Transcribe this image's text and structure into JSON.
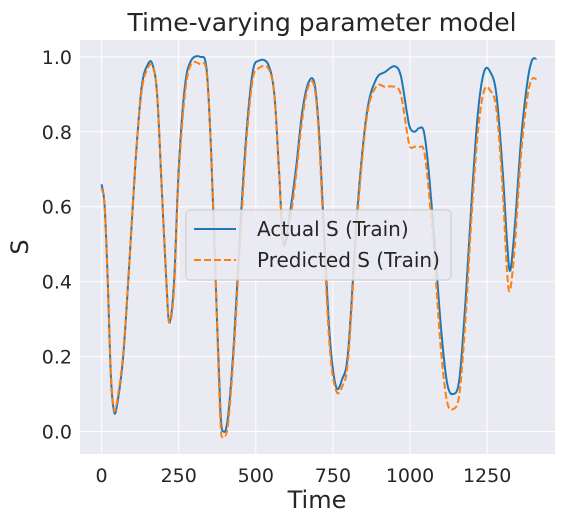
{
  "chart_data": {
    "type": "line",
    "title": "Time-varying parameter model",
    "xlabel": "Time",
    "ylabel": "S",
    "xlim": [
      -70,
      1470
    ],
    "ylim": [
      -0.06,
      1.045
    ],
    "xticks": [
      0,
      250,
      500,
      750,
      1000,
      1250
    ],
    "yticks": [
      0.0,
      0.2,
      0.4,
      0.6,
      0.8,
      1.0
    ],
    "ytick_labels": [
      "0.0",
      "0.2",
      "0.4",
      "0.6",
      "0.8",
      "1.0"
    ],
    "grid": true,
    "background": "#EAEAF2",
    "legend": {
      "placement": "center-right"
    },
    "series": [
      {
        "name": "Actual S (Train)",
        "color": "#1F77B4",
        "dash": "solid",
        "points": [
          [
            0,
            0.66
          ],
          [
            10,
            0.6
          ],
          [
            20,
            0.4
          ],
          [
            30,
            0.15
          ],
          [
            40,
            0.055
          ],
          [
            50,
            0.07
          ],
          [
            70,
            0.2
          ],
          [
            90,
            0.45
          ],
          [
            110,
            0.72
          ],
          [
            130,
            0.92
          ],
          [
            150,
            0.98
          ],
          [
            165,
            0.98
          ],
          [
            180,
            0.9
          ],
          [
            195,
            0.65
          ],
          [
            210,
            0.4
          ],
          [
            220,
            0.29
          ],
          [
            235,
            0.4
          ],
          [
            250,
            0.7
          ],
          [
            270,
            0.92
          ],
          [
            290,
            0.99
          ],
          [
            320,
            1.0
          ],
          [
            340,
            0.97
          ],
          [
            355,
            0.75
          ],
          [
            370,
            0.4
          ],
          [
            385,
            0.06
          ],
          [
            395,
            0.0
          ],
          [
            410,
            0.04
          ],
          [
            430,
            0.25
          ],
          [
            450,
            0.55
          ],
          [
            470,
            0.8
          ],
          [
            490,
            0.96
          ],
          [
            510,
            0.99
          ],
          [
            540,
            0.98
          ],
          [
            560,
            0.9
          ],
          [
            575,
            0.7
          ],
          [
            590,
            0.5
          ],
          [
            610,
            0.58
          ],
          [
            630,
            0.7
          ],
          [
            650,
            0.85
          ],
          [
            670,
            0.93
          ],
          [
            690,
            0.93
          ],
          [
            705,
            0.8
          ],
          [
            720,
            0.55
          ],
          [
            740,
            0.25
          ],
          [
            760,
            0.12
          ],
          [
            780,
            0.14
          ],
          [
            800,
            0.22
          ],
          [
            830,
            0.6
          ],
          [
            860,
            0.85
          ],
          [
            890,
            0.94
          ],
          [
            920,
            0.96
          ],
          [
            950,
            0.975
          ],
          [
            970,
            0.95
          ],
          [
            990,
            0.85
          ],
          [
            1000,
            0.81
          ],
          [
            1015,
            0.8
          ],
          [
            1030,
            0.81
          ],
          [
            1045,
            0.8
          ],
          [
            1060,
            0.7
          ],
          [
            1080,
            0.5
          ],
          [
            1100,
            0.28
          ],
          [
            1120,
            0.13
          ],
          [
            1140,
            0.1
          ],
          [
            1160,
            0.14
          ],
          [
            1180,
            0.35
          ],
          [
            1200,
            0.62
          ],
          [
            1220,
            0.85
          ],
          [
            1240,
            0.96
          ],
          [
            1260,
            0.96
          ],
          [
            1280,
            0.9
          ],
          [
            1300,
            0.7
          ],
          [
            1315,
            0.5
          ],
          [
            1325,
            0.43
          ],
          [
            1340,
            0.55
          ],
          [
            1360,
            0.78
          ],
          [
            1380,
            0.93
          ],
          [
            1395,
            0.99
          ],
          [
            1410,
            0.995
          ]
        ]
      },
      {
        "name": "Predicted S (Train)",
        "color": "#FF7F0E",
        "dash": "dashed",
        "points": [
          [
            0,
            0.65
          ],
          [
            10,
            0.6
          ],
          [
            20,
            0.4
          ],
          [
            30,
            0.16
          ],
          [
            40,
            0.06
          ],
          [
            50,
            0.08
          ],
          [
            70,
            0.21
          ],
          [
            90,
            0.45
          ],
          [
            110,
            0.72
          ],
          [
            130,
            0.91
          ],
          [
            150,
            0.97
          ],
          [
            165,
            0.975
          ],
          [
            180,
            0.9
          ],
          [
            195,
            0.65
          ],
          [
            210,
            0.4
          ],
          [
            220,
            0.29
          ],
          [
            235,
            0.38
          ],
          [
            250,
            0.68
          ],
          [
            270,
            0.9
          ],
          [
            290,
            0.98
          ],
          [
            320,
            0.98
          ],
          [
            340,
            0.96
          ],
          [
            355,
            0.75
          ],
          [
            370,
            0.4
          ],
          [
            385,
            0.03
          ],
          [
            395,
            -0.01
          ],
          [
            410,
            0.02
          ],
          [
            430,
            0.23
          ],
          [
            450,
            0.52
          ],
          [
            470,
            0.78
          ],
          [
            490,
            0.94
          ],
          [
            510,
            0.97
          ],
          [
            540,
            0.97
          ],
          [
            560,
            0.9
          ],
          [
            575,
            0.7
          ],
          [
            590,
            0.5
          ],
          [
            610,
            0.56
          ],
          [
            630,
            0.68
          ],
          [
            650,
            0.83
          ],
          [
            670,
            0.92
          ],
          [
            690,
            0.92
          ],
          [
            705,
            0.78
          ],
          [
            720,
            0.52
          ],
          [
            740,
            0.22
          ],
          [
            760,
            0.11
          ],
          [
            780,
            0.12
          ],
          [
            800,
            0.2
          ],
          [
            830,
            0.58
          ],
          [
            860,
            0.84
          ],
          [
            890,
            0.92
          ],
          [
            920,
            0.92
          ],
          [
            950,
            0.92
          ],
          [
            970,
            0.9
          ],
          [
            990,
            0.8
          ],
          [
            1000,
            0.76
          ],
          [
            1015,
            0.76
          ],
          [
            1030,
            0.76
          ],
          [
            1045,
            0.75
          ],
          [
            1060,
            0.65
          ],
          [
            1080,
            0.45
          ],
          [
            1100,
            0.22
          ],
          [
            1120,
            0.08
          ],
          [
            1140,
            0.06
          ],
          [
            1160,
            0.1
          ],
          [
            1180,
            0.3
          ],
          [
            1200,
            0.58
          ],
          [
            1220,
            0.8
          ],
          [
            1240,
            0.91
          ],
          [
            1260,
            0.91
          ],
          [
            1280,
            0.86
          ],
          [
            1300,
            0.65
          ],
          [
            1315,
            0.42
          ],
          [
            1325,
            0.38
          ],
          [
            1340,
            0.5
          ],
          [
            1360,
            0.74
          ],
          [
            1380,
            0.89
          ],
          [
            1395,
            0.94
          ],
          [
            1410,
            0.94
          ]
        ]
      }
    ]
  }
}
